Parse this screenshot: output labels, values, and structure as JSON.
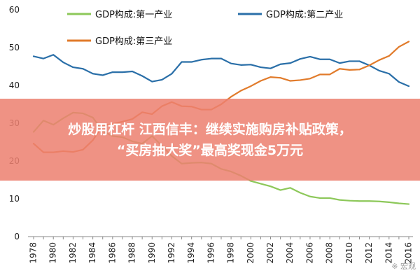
{
  "chart_data": {
    "type": "line",
    "x": [
      1978,
      1979,
      1980,
      1981,
      1982,
      1983,
      1984,
      1985,
      1986,
      1987,
      1988,
      1989,
      1990,
      1991,
      1992,
      1993,
      1994,
      1995,
      1996,
      1997,
      1998,
      1999,
      2000,
      2001,
      2002,
      2003,
      2004,
      2005,
      2006,
      2007,
      2008,
      2009,
      2010,
      2011,
      2012,
      2013,
      2014,
      2015,
      2016
    ],
    "xtick_labels": [
      "1978",
      "1980",
      "1982",
      "1984",
      "1986",
      "1988",
      "1990",
      "1992",
      "1994",
      "1996",
      "1998",
      "2000",
      "2002",
      "2004",
      "2006",
      "2008",
      "2010",
      "2012",
      "2014",
      "2016"
    ],
    "ylim": [
      0,
      60
    ],
    "yticks": [
      "0",
      "10",
      "20",
      "30",
      "40",
      "50",
      "60"
    ],
    "series": [
      {
        "name": "GDP构成:第一产业",
        "color": "#8dc85a",
        "values": [
          27.7,
          30.7,
          29.6,
          31.3,
          32.8,
          32.6,
          31.5,
          27.9,
          26.6,
          26.3,
          25.2,
          24.6,
          26.6,
          24.0,
          21.3,
          19.3,
          19.5,
          19.6,
          19.3,
          17.9,
          17.2,
          16.1,
          14.7,
          14.0,
          13.3,
          12.3,
          12.9,
          11.6,
          10.6,
          10.2,
          10.2,
          9.7,
          9.5,
          9.4,
          9.4,
          9.3,
          9.1,
          8.8,
          8.6
        ]
      },
      {
        "name": "GDP构成:第二产业",
        "color": "#2a6fa8",
        "values": [
          47.7,
          47.1,
          48.1,
          46.1,
          44.8,
          44.4,
          43.1,
          42.7,
          43.5,
          43.5,
          43.7,
          42.5,
          41.0,
          41.5,
          43.1,
          46.2,
          46.2,
          46.8,
          47.1,
          47.1,
          45.8,
          45.4,
          45.5,
          44.8,
          44.5,
          45.6,
          45.9,
          47.0,
          47.6,
          46.9,
          46.9,
          45.9,
          46.4,
          46.4,
          45.3,
          43.9,
          43.1,
          40.9,
          39.8
        ]
      },
      {
        "name": "GDP构成:第三产业",
        "color": "#e17b2b",
        "values": [
          24.6,
          22.3,
          22.3,
          22.6,
          22.4,
          23.0,
          25.5,
          29.4,
          29.8,
          30.4,
          31.1,
          32.9,
          32.4,
          34.5,
          35.6,
          34.5,
          34.4,
          33.6,
          33.6,
          35.0,
          37.0,
          38.6,
          39.8,
          41.2,
          42.2,
          42.0,
          41.2,
          41.4,
          41.8,
          42.9,
          42.9,
          44.4,
          44.1,
          44.2,
          45.3,
          46.7,
          47.8,
          50.2,
          51.6
        ]
      }
    ],
    "grid": false,
    "legend": "top"
  },
  "banner": {
    "line1": "炒股用杠杆 江西信丰：继续实施购房补贴政策，",
    "line2": "“买房抽大奖”最高奖现金5万元"
  },
  "watermark": "※ 宏观"
}
